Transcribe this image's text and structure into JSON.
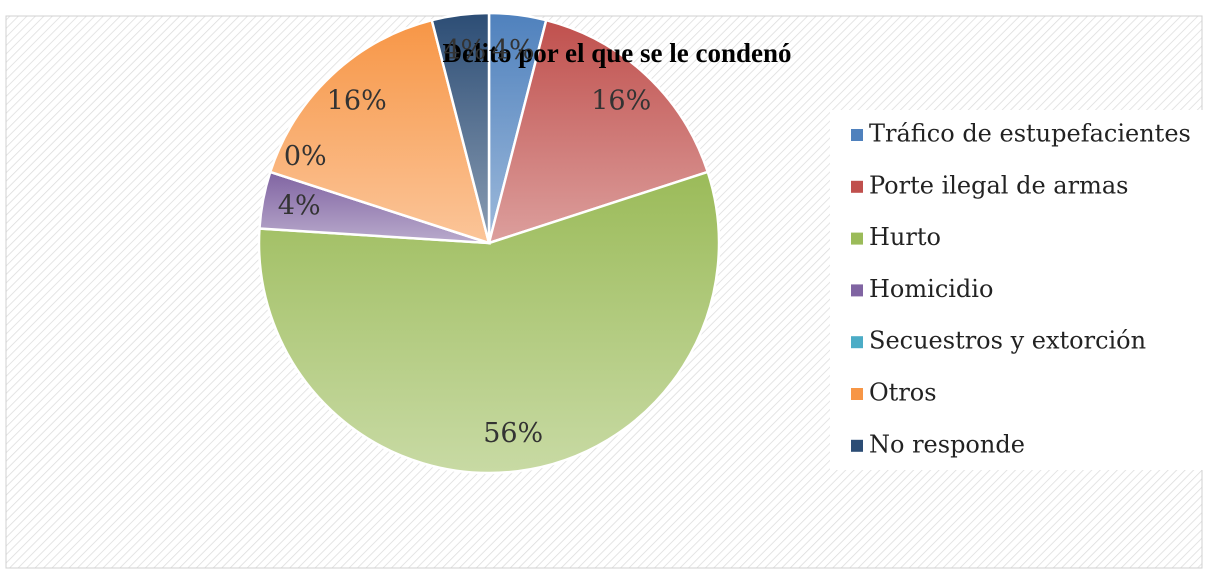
{
  "chart_data": {
    "type": "pie",
    "title": "Delito por el que se le condenó",
    "categories": [
      "Tráfico de estupefacientes",
      "Porte ilegal de armas",
      "Hurto",
      "Homicidio",
      "Secuestros y extorción",
      "Otros",
      "No responde"
    ],
    "values": [
      4,
      16,
      56,
      4,
      0,
      16,
      4
    ],
    "value_labels": [
      "4%",
      "16%",
      "56%",
      "4%",
      "0%",
      "16%",
      "4%"
    ],
    "colors": [
      "#4f81bd",
      "#c0504d",
      "#9bbb59",
      "#8064a2",
      "#4bacc6",
      "#f79646",
      "#2c4d75"
    ],
    "legend": "right"
  }
}
